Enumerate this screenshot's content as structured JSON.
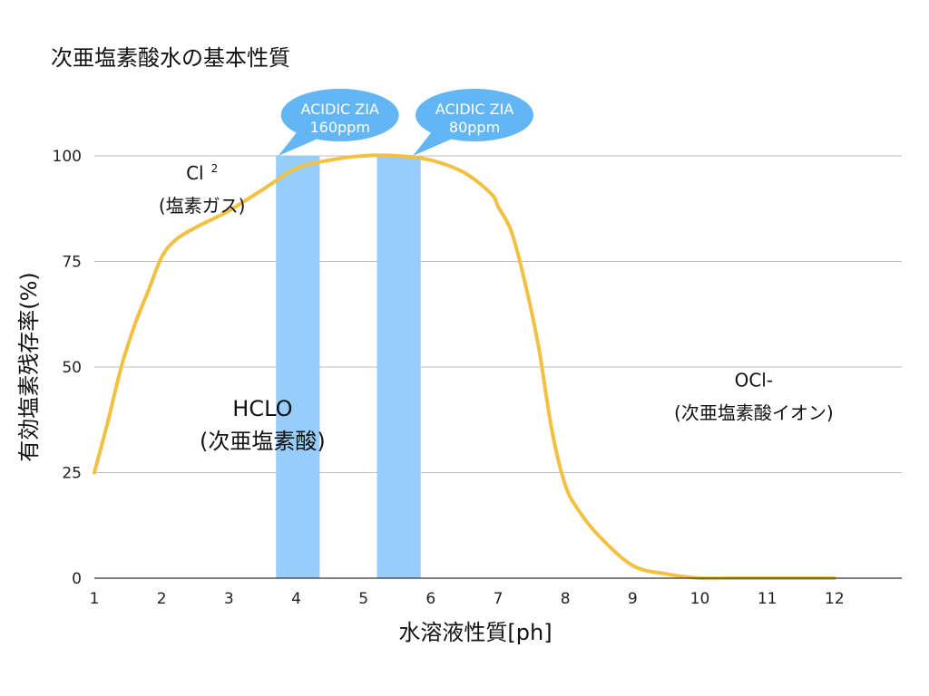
{
  "chart_data": {
    "type": "line",
    "title": "次亜塩素酸水の基本性質",
    "xlabel": "水溶液性質[ph]",
    "ylabel": "有効塩素残存率(%)",
    "xlim": [
      1,
      13
    ],
    "ylim": [
      0,
      100
    ],
    "x_ticks": [
      1,
      2,
      3,
      4,
      5,
      6,
      7,
      8,
      9,
      10,
      11,
      12
    ],
    "y_ticks": [
      0,
      25,
      50,
      75,
      100
    ],
    "grid": true,
    "series": [
      {
        "color": "#f2c141",
        "points": [
          [
            1.0,
            25
          ],
          [
            1.2,
            37
          ],
          [
            1.4,
            50
          ],
          [
            1.6,
            60
          ],
          [
            1.8,
            68
          ],
          [
            2.0,
            76
          ],
          [
            2.2,
            80
          ],
          [
            2.5,
            83
          ],
          [
            3.0,
            87
          ],
          [
            3.5,
            92
          ],
          [
            4.0,
            97
          ],
          [
            4.5,
            99
          ],
          [
            5.0,
            100
          ],
          [
            5.5,
            100
          ],
          [
            6.0,
            99
          ],
          [
            6.5,
            96
          ],
          [
            6.9,
            91
          ],
          [
            7.0,
            88
          ],
          [
            7.2,
            82
          ],
          [
            7.4,
            70
          ],
          [
            7.6,
            55
          ],
          [
            7.8,
            35
          ],
          [
            8.0,
            22
          ],
          [
            8.2,
            16
          ],
          [
            8.5,
            10
          ],
          [
            9.0,
            3
          ],
          [
            9.5,
            1
          ],
          [
            10.0,
            0
          ],
          [
            10.5,
            0
          ],
          [
            11.0,
            0
          ],
          [
            12.0,
            0
          ]
        ]
      }
    ],
    "bands": [
      {
        "x0": 3.7,
        "x1": 4.35,
        "color": "#96cdfb"
      },
      {
        "x0": 5.2,
        "x1": 5.85,
        "color": "#96cdfb"
      }
    ],
    "callouts": [
      {
        "line1": "ACIDIC ZIA",
        "line2": "160ppm",
        "x": 4.65,
        "color": "#63b6f4"
      },
      {
        "line1": "ACIDIC ZIA",
        "line2": "80ppm",
        "x": 6.65,
        "color": "#63b6f4"
      }
    ],
    "annotations": [
      {
        "line1": "Cl",
        "superscript": "2",
        "line2": "(塩素ガス)",
        "x": 2.6,
        "y": 100,
        "size": 20
      },
      {
        "line1": "HCLO",
        "line2": "(次亜塩素酸)",
        "x": 3.5,
        "y": 44,
        "size": 24
      },
      {
        "line1": "OCl-",
        "line2": "(次亜塩素酸イオン)",
        "x": 10.8,
        "y": 51,
        "size": 20
      }
    ]
  }
}
